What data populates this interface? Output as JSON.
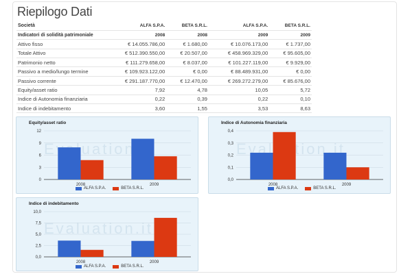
{
  "page": {
    "title": "Riepilogo Dati"
  },
  "table": {
    "header_row1": [
      "Società",
      "ALFA S.P.A.",
      "BETA S.R.L.",
      "ALFA S.P.A.",
      "BETA S.R.L."
    ],
    "header_row2": [
      "Indicatori di solidità patrimoniale",
      "2008",
      "2008",
      "2009",
      "2009"
    ],
    "rows": [
      [
        "Attivo fisso",
        "€ 14.055.786,00",
        "€ 1.680,00",
        "€ 10.076.173,00",
        "€ 1.737,00"
      ],
      [
        "Totale Attivo",
        "€ 512.390.550,00",
        "€ 20.507,00",
        "€ 458.969.329,00",
        "€ 95.605,00"
      ],
      [
        "Patrimonio netto",
        "€ 111.279.658,00",
        "€ 8.037,00",
        "€ 101.227.119,00",
        "€ 9.929,00"
      ],
      [
        "Passivo a medio/lungo termine",
        "€ 109.923.122,00",
        "€ 0,00",
        "€ 88.489.931,00",
        "€ 0,00"
      ],
      [
        "Passivo corrente",
        "€ 291.187.770,00",
        "€ 12.470,00",
        "€ 269.272.279,00",
        "€ 85.676,00"
      ],
      [
        "Equity/asset ratio",
        "7,92",
        "4,78",
        "10,05",
        "5,72"
      ],
      [
        "Indice di Autonomia finanziaria",
        "0,22",
        "0,39",
        "0,22",
        "0,10"
      ],
      [
        "Indice di indebitamento",
        "3,60",
        "1,55",
        "3,53",
        "8,63"
      ]
    ]
  },
  "watermark_text": "Evaluation.it",
  "colors": {
    "alfa": "#3366cc",
    "beta": "#dc3912"
  },
  "chart_data": [
    {
      "type": "bar",
      "title": "Equity/asset ratio",
      "categories": [
        "2008",
        "2009"
      ],
      "series": [
        {
          "name": "ALFA S.P.A.",
          "values": [
            7.92,
            10.05
          ]
        },
        {
          "name": "BETA S.R.L.",
          "values": [
            4.78,
            5.72
          ]
        }
      ],
      "ylim": [
        0,
        12
      ],
      "yticks": [
        "0",
        "3",
        "6",
        "9",
        "12"
      ],
      "legend": "bottom"
    },
    {
      "type": "bar",
      "title": "Indice di Autonomia finanziaria",
      "categories": [
        "2008",
        "2009"
      ],
      "series": [
        {
          "name": "ALFA S.P.A.",
          "values": [
            0.22,
            0.22
          ]
        },
        {
          "name": "BETA S.R.L.",
          "values": [
            0.39,
            0.1
          ]
        }
      ],
      "ylim": [
        0,
        0.4
      ],
      "yticks": [
        "0,0",
        "0,1",
        "0,2",
        "0,3",
        "0,4"
      ],
      "legend": "bottom"
    },
    {
      "type": "bar",
      "title": "Indice di indebitamento",
      "categories": [
        "2008",
        "2009"
      ],
      "series": [
        {
          "name": "ALFA S.P.A.",
          "values": [
            3.6,
            3.53
          ]
        },
        {
          "name": "BETA S.R.L.",
          "values": [
            1.55,
            8.63
          ]
        }
      ],
      "ylim": [
        0,
        10
      ],
      "yticks": [
        "0,0",
        "2,5",
        "5,0",
        "7,5",
        "10,0"
      ],
      "legend": "bottom"
    }
  ]
}
